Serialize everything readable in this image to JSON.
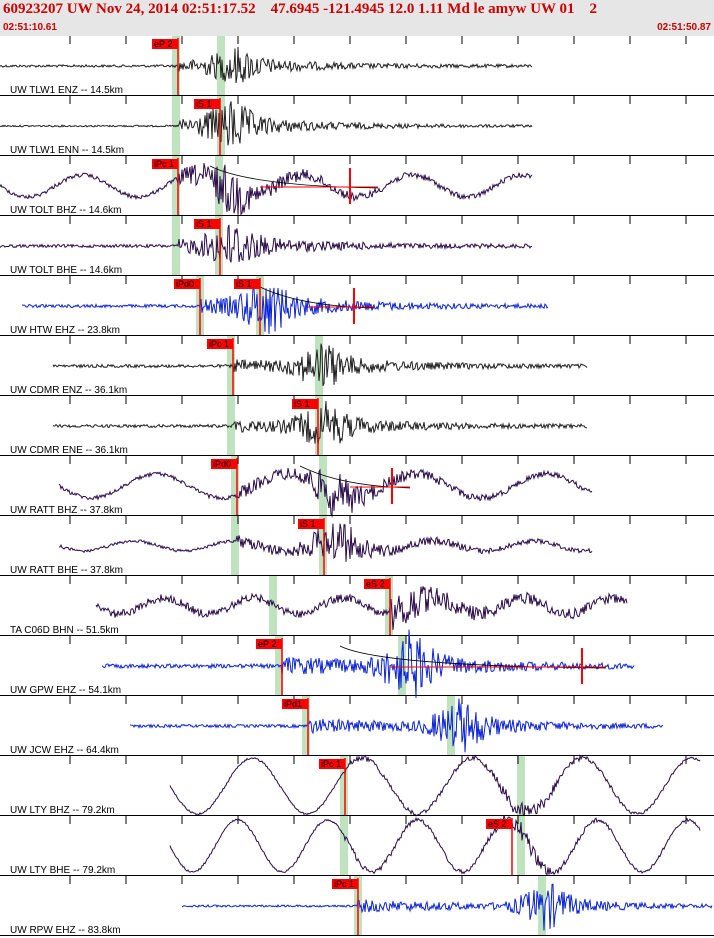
{
  "header": {
    "title": "60923207 UW Nov 24, 2014 02:51:17.52    47.6945 -121.4945 12.0 1.11 Md le amyw UW 01    2",
    "time_start": "02:51:10.61",
    "time_end": "02:51:50.87"
  },
  "colors": {
    "header_bg": "#e6e6e6",
    "header_text": "#cc0000",
    "pick_flag": "#ff0000",
    "arrival_band": "#bfe3bf",
    "trace_black": "#202020",
    "trace_purple": "#2a0a4a",
    "trace_blue": "#0a22d8",
    "gridline": "#000000"
  },
  "traces": [
    {
      "label": "UW TLW1 ENZ -- 14.5km",
      "color": "black",
      "kind": "quake",
      "start": 0,
      "end": 532,
      "onset": 178,
      "peak": 230,
      "amp": 12,
      "noise": 1.2,
      "picks": [
        {
          "text": "eP 2",
          "x": 178
        }
      ],
      "bands": [
        176,
        221
      ],
      "red": null
    },
    {
      "label": "UW TLW1 ENN -- 14.5km",
      "color": "black",
      "kind": "quake",
      "start": 0,
      "end": 532,
      "onset": 178,
      "peak": 226,
      "amp": 16,
      "noise": 0.8,
      "picks": [
        {
          "text": "iS 1",
          "x": 220
        }
      ],
      "bands": [
        176,
        221
      ],
      "red": null
    },
    {
      "label": "UW TOLT BHZ -- 14.6km",
      "color": "purple",
      "kind": "wavy",
      "start": 0,
      "end": 532,
      "onset": 178,
      "peak": 222,
      "amp": 14,
      "noise": 2,
      "period": 110,
      "lowamp": 11,
      "picks": [
        {
          "text": "iPc 1",
          "x": 178
        }
      ],
      "bands": [
        176,
        219
      ],
      "red": {
        "x0": 210,
        "x1": 378,
        "flag": 350
      }
    },
    {
      "label": "UW TOLT BHE -- 14.6km",
      "color": "purple",
      "kind": "quake",
      "start": 0,
      "end": 532,
      "onset": 178,
      "peak": 228,
      "amp": 15,
      "noise": 1.5,
      "picks": [
        {
          "text": "iS 1",
          "x": 220
        }
      ],
      "bands": [
        176,
        219
      ],
      "red": null
    },
    {
      "label": "UW HTW EHZ -- 23.8km",
      "color": "blue",
      "kind": "quake",
      "start": 22,
      "end": 548,
      "onset": 200,
      "peak": 262,
      "amp": 18,
      "noise": 1.5,
      "picks": [
        {
          "text": "iPd0",
          "x": 200
        },
        {
          "text": "iS 1",
          "x": 260
        }
      ],
      "bands": [
        200,
        260
      ],
      "red": {
        "x0": 258,
        "x1": 374,
        "flag": 354
      }
    },
    {
      "label": "UW CDMR ENZ -- 36.1km",
      "color": "black",
      "kind": "quake",
      "start": 53,
      "end": 587,
      "onset": 233,
      "peak": 318,
      "amp": 15,
      "noise": 1.5,
      "picks": [
        {
          "text": "iPc 1",
          "x": 233
        }
      ],
      "bands": [
        231,
        319
      ],
      "red": null
    },
    {
      "label": "UW CDMR ENE -- 36.1km",
      "color": "black",
      "kind": "quake",
      "start": 53,
      "end": 587,
      "onset": 233,
      "peak": 320,
      "amp": 15,
      "noise": 1.5,
      "picks": [
        {
          "text": "iS 1",
          "x": 318
        }
      ],
      "bands": [
        231,
        319
      ],
      "red": null
    },
    {
      "label": "UW RATT BHZ -- 37.8km",
      "color": "purple",
      "kind": "wavy",
      "start": 59,
      "end": 592,
      "onset": 237,
      "peak": 330,
      "amp": 14,
      "noise": 2,
      "period": 130,
      "lowamp": 12,
      "picks": [
        {
          "text": "iPd0",
          "x": 237
        }
      ],
      "bands": [
        235,
        323
      ],
      "red": {
        "x0": 300,
        "x1": 410,
        "flag": 392
      }
    },
    {
      "label": "UW RATT BHE -- 37.8km",
      "color": "purple",
      "kind": "wavy",
      "start": 59,
      "end": 592,
      "onset": 237,
      "peak": 332,
      "amp": 14,
      "noise": 1.5,
      "period": 100,
      "lowamp": 5,
      "picks": [
        {
          "text": "iS 1",
          "x": 324
        }
      ],
      "bands": [
        235,
        323
      ],
      "red": null
    },
    {
      "label": "TA C06D BHN -- 51.5km",
      "color": "purple",
      "kind": "wavy",
      "start": 96,
      "end": 627,
      "onset": 390,
      "peak": 400,
      "amp": 10,
      "noise": 4,
      "period": 90,
      "lowamp": 8,
      "picks": [
        {
          "text": "eS 2",
          "x": 390
        }
      ],
      "bands": [
        273,
        389
      ],
      "red": null
    },
    {
      "label": "UW GPW EHZ -- 54.1km",
      "color": "blue",
      "kind": "quake",
      "start": 102,
      "end": 634,
      "onset": 282,
      "peak": 405,
      "amp": 22,
      "noise": 2,
      "picks": [
        {
          "text": "eP 2",
          "x": 282
        }
      ],
      "bands": [
        279,
        402
      ],
      "red": {
        "x0": 340,
        "x1": 606,
        "flag": 582
      }
    },
    {
      "label": "UW JCW EHZ -- 64.4km",
      "color": "blue",
      "kind": "quake",
      "start": 130,
      "end": 663,
      "onset": 308,
      "peak": 456,
      "amp": 18,
      "noise": 1.5,
      "picks": [
        {
          "text": "iPd1",
          "x": 308
        }
      ],
      "bands": [
        306,
        451
      ],
      "red": null
    },
    {
      "label": "UW LTY BHZ -- 79.2km",
      "color": "purple",
      "kind": "wavy",
      "start": 170,
      "end": 700,
      "onset": 345,
      "peak": 520,
      "amp": 6,
      "noise": 1,
      "period": 110,
      "lowamp": 28,
      "picks": [
        {
          "text": "iPc 1",
          "x": 345
        }
      ],
      "bands": [
        344,
        521
      ],
      "red": null
    },
    {
      "label": "UW LTY BHE -- 79.2km",
      "color": "purple",
      "kind": "wavy",
      "start": 170,
      "end": 700,
      "onset": 345,
      "peak": 520,
      "amp": 6,
      "noise": 1,
      "period": 90,
      "lowamp": 26,
      "picks": [
        {
          "text": "eS 2",
          "x": 512
        }
      ],
      "bands": [
        344,
        521
      ],
      "red": null
    },
    {
      "label": "UW RPW EHZ -- 83.8km",
      "color": "blue",
      "kind": "quake",
      "start": 182,
      "end": 712,
      "onset": 358,
      "peak": 542,
      "amp": 16,
      "noise": 1,
      "picks": [
        {
          "text": "iPc 1",
          "x": 358
        }
      ],
      "bands": [
        358,
        542
      ],
      "red": null
    }
  ]
}
